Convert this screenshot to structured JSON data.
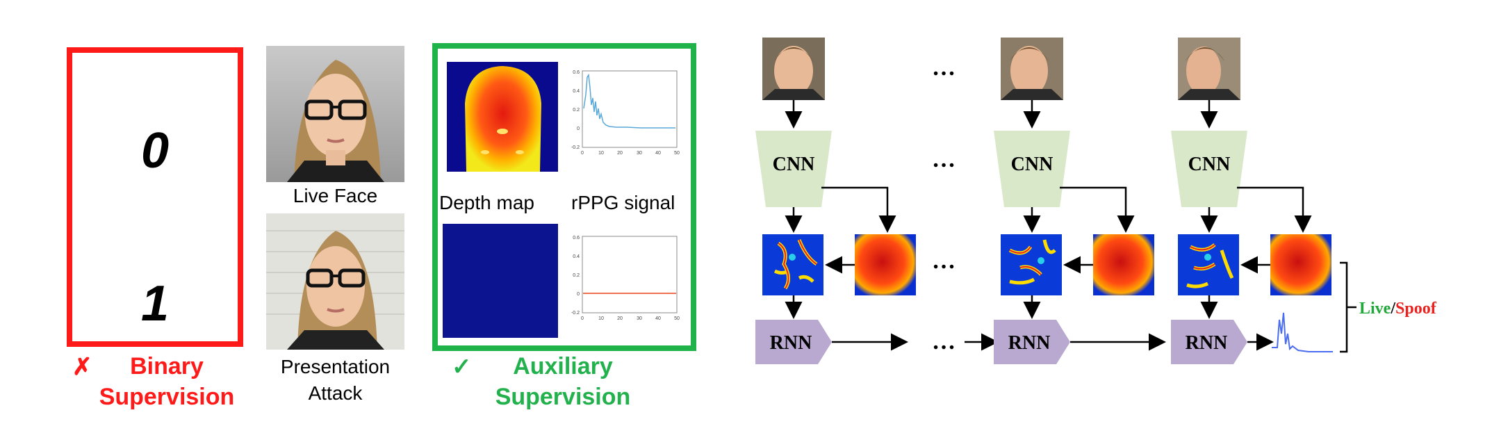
{
  "left_panel": {
    "binary": {
      "zero": "0",
      "one": "1",
      "mark": "✗",
      "title_line1": "Binary",
      "title_line2": "Supervision"
    },
    "photos": {
      "live_label": "Live Face",
      "attack_label_line1": "Presentation",
      "attack_label_line2": "Attack"
    },
    "auxiliary": {
      "depth_label": "Depth map",
      "rppg_label": "rPPG signal",
      "mark": "✓",
      "title_line1": "Auxiliary",
      "title_line2": "Supervision",
      "plot_top": {
        "y_ticks": [
          "0.6",
          "0.4",
          "0.2",
          "0",
          "-0.2"
        ],
        "x_ticks": [
          "0",
          "10",
          "20",
          "30",
          "40",
          "50"
        ]
      },
      "plot_bottom": {
        "y_ticks": [
          "0.6",
          "0.4",
          "0.2",
          "0",
          "-0.2"
        ],
        "x_ticks": [
          "0",
          "10",
          "20",
          "30",
          "40",
          "50"
        ]
      }
    }
  },
  "pipeline": {
    "cnn_label": "CNN",
    "rnn_label": "RNN",
    "ellipsis": "…",
    "result_live": "Live",
    "result_sep": "/",
    "result_spoof": "Spoof",
    "colors": {
      "cnn": "#d9e8c9",
      "rnn": "#b9a9d1",
      "live": "#22a83a",
      "spoof": "#e8231f",
      "signal": "#4a6cf0"
    }
  }
}
